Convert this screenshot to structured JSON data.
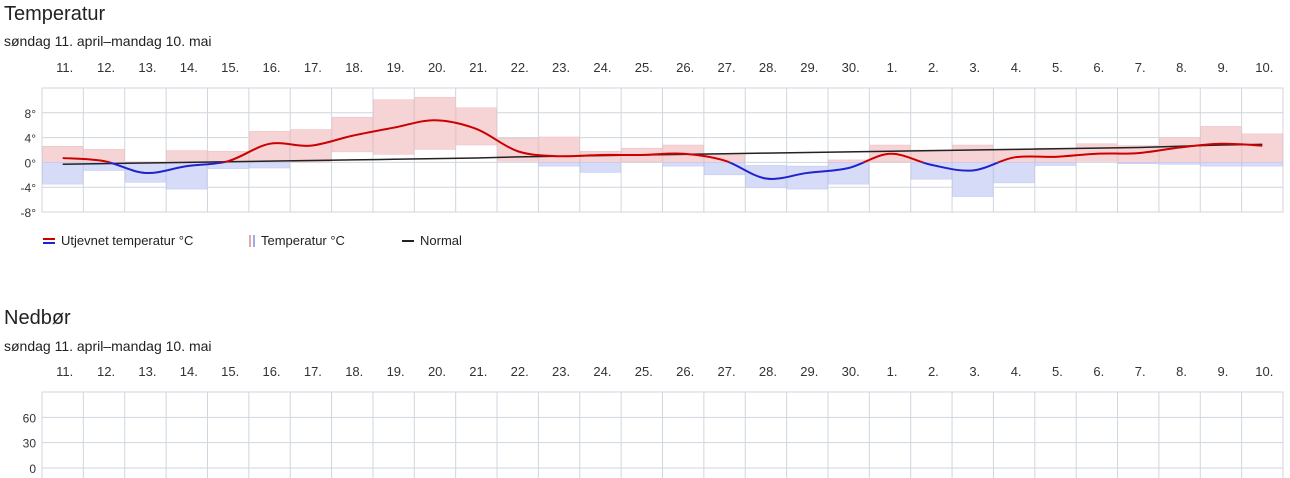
{
  "temperature": {
    "title": "Temperatur",
    "subtitle": "søndag 11. april–mandag 10. mai",
    "legend": {
      "smoothed": "Utjevnet temperatur °C",
      "temperature": "Temperatur °C",
      "normal": "Normal"
    }
  },
  "precipitation": {
    "title": "Nedbør",
    "subtitle": "søndag 11. april–mandag 10. mai"
  },
  "chart_data": [
    {
      "type": "bar",
      "title": "Temperatur",
      "categories": [
        "11.",
        "12.",
        "13.",
        "14.",
        "15.",
        "16.",
        "17.",
        "18.",
        "19.",
        "20.",
        "21.",
        "22.",
        "23.",
        "24.",
        "25.",
        "26.",
        "27.",
        "28.",
        "29.",
        "30.",
        "1.",
        "2.",
        "3.",
        "4.",
        "5.",
        "6.",
        "7.",
        "8.",
        "9.",
        "10."
      ],
      "y_tick_labels": [
        "8°",
        "4°",
        "0°",
        "-4°",
        "-8°"
      ],
      "ylim": [
        -8,
        12
      ],
      "grid": true,
      "legend_position": "bottom-left",
      "series": [
        {
          "name": "Temperatur °C",
          "kind": "range-bar",
          "low": [
            -3.5,
            -1.3,
            -3.2,
            -4.3,
            -1.0,
            -0.9,
            0.1,
            1.7,
            1.3,
            2.1,
            2.8,
            0.2,
            -0.6,
            -1.6,
            0.1,
            -0.6,
            -2.0,
            -4.1,
            -4.3,
            -3.5,
            0.1,
            -2.7,
            -5.5,
            -3.3,
            -0.5,
            0.2,
            -0.2,
            -0.3,
            -0.6,
            -0.6
          ],
          "high": [
            2.6,
            2.1,
            0.1,
            1.9,
            1.8,
            5.0,
            5.3,
            7.3,
            10.1,
            10.5,
            8.8,
            3.9,
            4.1,
            1.8,
            2.3,
            2.8,
            1.2,
            -0.5,
            -0.6,
            0.4,
            2.8,
            2.0,
            2.8,
            2.1,
            2.3,
            3.0,
            2.7,
            4.0,
            5.8,
            4.6
          ]
        },
        {
          "name": "Utjevnet temperatur °C",
          "kind": "line",
          "values": [
            0.7,
            0.2,
            -1.7,
            -0.6,
            0.2,
            3.0,
            2.7,
            4.3,
            5.6,
            6.8,
            5.4,
            1.8,
            1.0,
            1.2,
            1.2,
            1.4,
            0.3,
            -2.6,
            -1.7,
            -0.9,
            1.4,
            -0.4,
            -1.3,
            0.8,
            0.9,
            1.4,
            1.5,
            2.4,
            3.0,
            2.7
          ],
          "colors": {
            "above": "#cc0000",
            "below": "#2222cc"
          }
        },
        {
          "name": "Normal",
          "kind": "line",
          "values": [
            -0.3,
            -0.2,
            -0.1,
            0.0,
            0.1,
            0.2,
            0.3,
            0.4,
            0.5,
            0.6,
            0.7,
            0.9,
            1.0,
            1.1,
            1.2,
            1.3,
            1.4,
            1.5,
            1.6,
            1.7,
            1.8,
            1.9,
            2.0,
            2.1,
            2.2,
            2.3,
            2.4,
            2.6,
            2.8,
            2.9
          ],
          "color": "#222222"
        }
      ]
    },
    {
      "type": "bar",
      "title": "Nedbør",
      "categories": [
        "11.",
        "12.",
        "13.",
        "14.",
        "15.",
        "16.",
        "17.",
        "18.",
        "19.",
        "20.",
        "21.",
        "22.",
        "23.",
        "24.",
        "25.",
        "26.",
        "27.",
        "28.",
        "29.",
        "30.",
        "1.",
        "2.",
        "3.",
        "4.",
        "5.",
        "6.",
        "7.",
        "8.",
        "9.",
        "10."
      ],
      "y_tick_labels": [
        "60",
        "30",
        "0"
      ],
      "ylim": [
        0,
        90
      ],
      "grid": true,
      "series": []
    }
  ]
}
